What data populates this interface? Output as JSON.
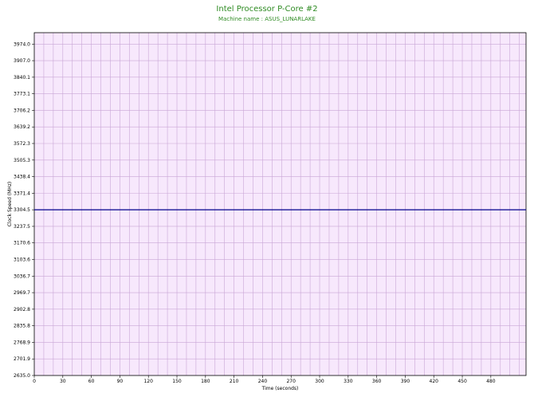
{
  "chart_data": {
    "type": "line",
    "title": "Intel Processor P-Core #2",
    "subtitle": "Machine name : ASUS_LUNARLAKE",
    "xlabel": "Time (seconds)",
    "ylabel": "Clock Speed (MHz)",
    "xlim": [
      0,
      517
    ],
    "ylim": [
      2635.0,
      4020.0
    ],
    "x_ticks": [
      "0",
      "30",
      "60",
      "90",
      "120",
      "150",
      "180",
      "210",
      "240",
      "270",
      "300",
      "330",
      "360",
      "390",
      "420",
      "450",
      "480"
    ],
    "y_ticks": [
      "3974.0",
      "3907.0",
      "3840.1",
      "3773.1",
      "3706.2",
      "3639.2",
      "3572.3",
      "3505.3",
      "3438.4",
      "3371.4",
      "3304.5",
      "3237.5",
      "3170.6",
      "3103.6",
      "3036.7",
      "2969.7",
      "2902.8",
      "2835.8",
      "2768.9",
      "2701.9",
      "2635.0"
    ],
    "grid": true,
    "colors": {
      "plot_bg": "#f7e8fc",
      "grid": "#c9a6d6",
      "line": "#00008b",
      "title": "#2e8b22"
    },
    "series": [
      {
        "x": [
          0,
          517
        ],
        "values": [
          3304.5,
          3304.5
        ]
      }
    ]
  }
}
